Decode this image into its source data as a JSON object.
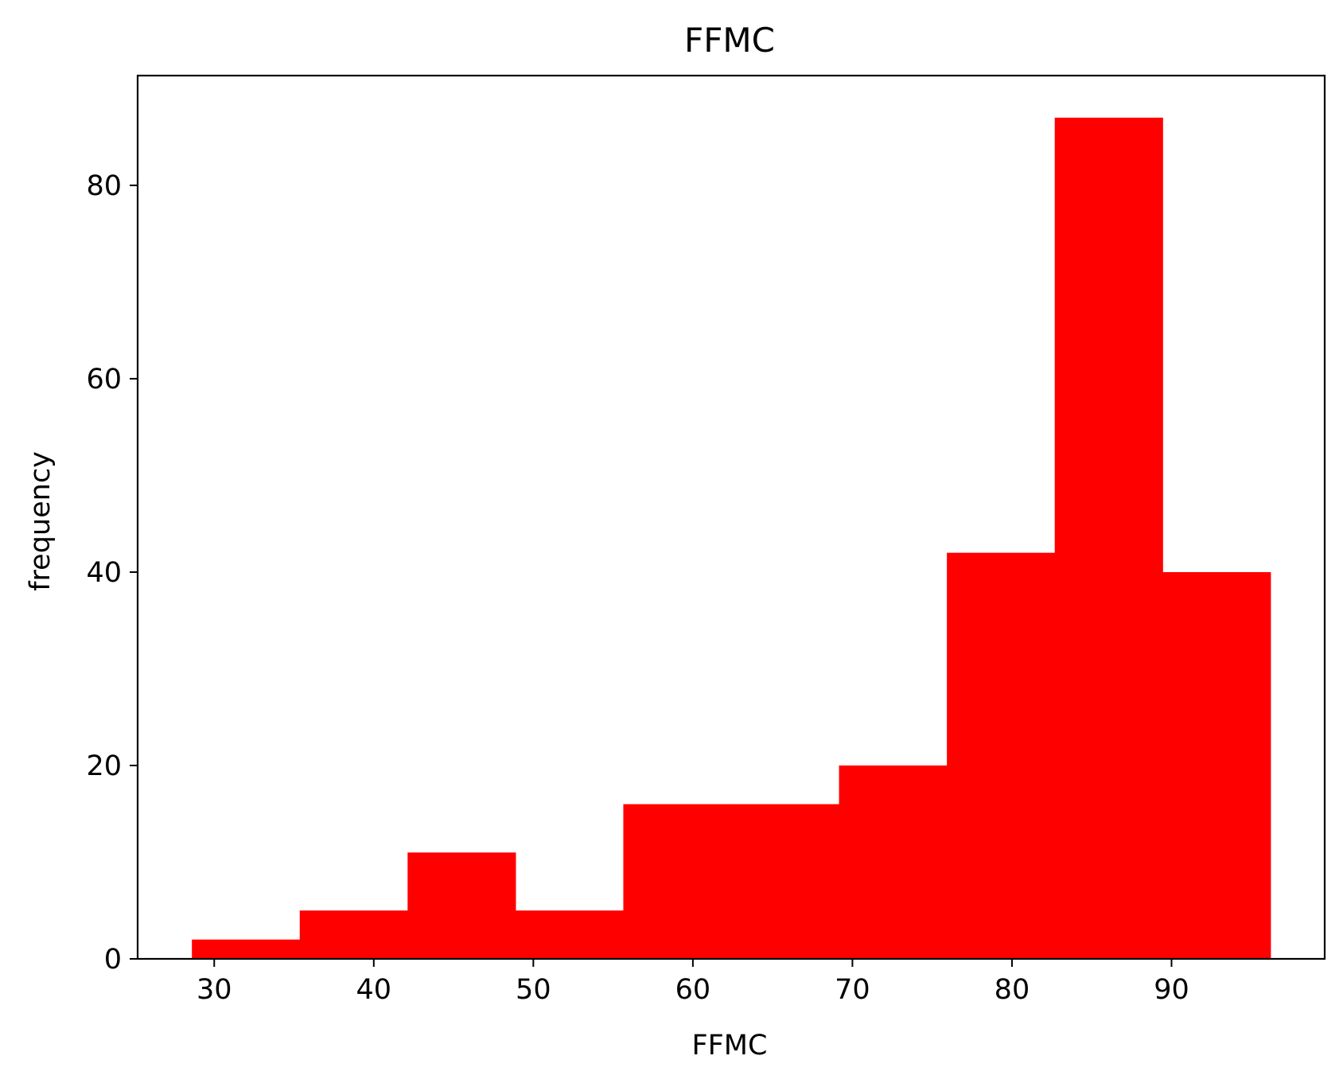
{
  "chart_data": {
    "type": "bar",
    "title": "FFMC",
    "xlabel": "FFMC",
    "ylabel": "frequency",
    "bin_edges": [
      28.6,
      35.36,
      42.12,
      48.88,
      55.64,
      62.4,
      69.16,
      75.92,
      82.68,
      89.44,
      96.2
    ],
    "values": [
      2,
      5,
      11,
      5,
      16,
      16,
      20,
      42,
      87,
      40
    ],
    "xlim": [
      25.2,
      99.6
    ],
    "ylim": [
      0,
      91.35
    ],
    "xticks": [
      30,
      40,
      50,
      60,
      70,
      80,
      90
    ],
    "yticks": [
      0,
      20,
      40,
      60,
      80
    ],
    "grid": false,
    "bar_color": "#ff0000"
  }
}
